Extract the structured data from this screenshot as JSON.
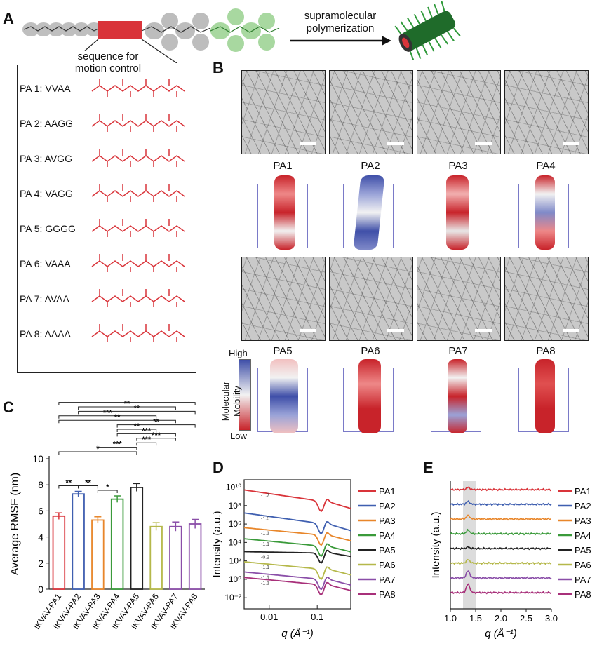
{
  "panel_labels": {
    "a": "A",
    "b": "B",
    "c": "C",
    "d": "D",
    "e": "E"
  },
  "panel_a": {
    "arrow_text_line1": "supramolecular",
    "arrow_text_line2": "polymerization",
    "box_title_line1": "sequence for",
    "box_title_line2": "motion control",
    "sequences": [
      {
        "label": "PA 1: VVAA"
      },
      {
        "label": "PA 2: AAGG"
      },
      {
        "label": "PA 3: AVGG"
      },
      {
        "label": "PA 4: VAGG"
      },
      {
        "label": "PA 5: GGGG"
      },
      {
        "label": "PA 6: VAAA"
      },
      {
        "label": "PA 7: AVAA"
      },
      {
        "label": "PA 8: AAAA"
      }
    ],
    "colors": {
      "sequence": "#d9343a",
      "peptide": "#555555",
      "green": "#3a9a3a"
    }
  },
  "panel_b": {
    "names_top": [
      "PA1",
      "PA2",
      "PA3",
      "PA4"
    ],
    "names_bottom": [
      "PA5",
      "PA6",
      "PA7",
      "PA8"
    ],
    "colorbar_high": "High",
    "colorbar_low": "Low",
    "colorbar_title_line1": "Molecular",
    "colorbar_title_line2": "Mobility",
    "colors": {
      "high": "#3f4fa8",
      "mid": "#f2f2f2",
      "low": "#c8232a"
    }
  },
  "chart_data": [
    {
      "panel": "C",
      "type": "bar",
      "ylabel": "Average RMSF (nm)",
      "ylim": [
        0,
        10
      ],
      "yticks": [
        0,
        2,
        4,
        6,
        8,
        10
      ],
      "categories": [
        "IKVAV-PA1",
        "IKVAV-PA2",
        "IKVAV-PA3",
        "IKVAV-PA4",
        "IKVAV-PA5",
        "IKVAV-PA6",
        "IKVAV-PA7",
        "IKVAV-PA8"
      ],
      "values": [
        5.6,
        7.3,
        5.3,
        6.9,
        7.8,
        4.8,
        4.8,
        5.0
      ],
      "errors": [
        0.25,
        0.2,
        0.25,
        0.25,
        0.3,
        0.3,
        0.35,
        0.35
      ],
      "bar_colors": [
        "#d9343a",
        "#3f5fb0",
        "#e8862a",
        "#3a9a3a",
        "#222222",
        "#b5b84a",
        "#8a4ea8",
        "#8a4ea8"
      ],
      "significance": [
        {
          "from": 0,
          "to": 1,
          "label": "**"
        },
        {
          "from": 1,
          "to": 2,
          "label": "**"
        },
        {
          "from": 2,
          "to": 3,
          "label": "*"
        },
        {
          "from": 0,
          "to": 4,
          "label": "*"
        },
        {
          "from": 2,
          "to": 4,
          "label": "***"
        },
        {
          "from": 4,
          "to": 5,
          "label": "***"
        },
        {
          "from": 4,
          "to": 6,
          "label": "***"
        },
        {
          "from": 3,
          "to": 6,
          "label": "***"
        },
        {
          "from": 3,
          "to": 5,
          "label": "**"
        },
        {
          "from": 3,
          "to": 7,
          "label": "**"
        },
        {
          "from": 0,
          "to": 6,
          "label": "**"
        },
        {
          "from": 0,
          "to": 5,
          "label": "***"
        },
        {
          "from": 1,
          "to": 7,
          "label": "**"
        },
        {
          "from": 1,
          "to": 6,
          "label": "**"
        },
        {
          "from": 0,
          "to": 7,
          "label": "***"
        }
      ]
    },
    {
      "panel": "D",
      "type": "line",
      "xlabel": "q (Å⁻¹)",
      "ylabel": "Intensity (a.u.)",
      "xscale": "log",
      "yscale": "log",
      "xlim": [
        0.003,
        0.5
      ],
      "ylim_log10": [
        -3.2,
        10.8
      ],
      "xtick_labels": [
        "0.01",
        "0.1"
      ],
      "ytick_labels": [
        "10¹⁰",
        "10⁸",
        "10⁶",
        "10⁴",
        "10²",
        "10⁰",
        "10⁻²"
      ],
      "ytick_values_log10": [
        10,
        8,
        6,
        4,
        2,
        0,
        -2
      ],
      "series": [
        {
          "name": "PA1",
          "color": "#d9343a",
          "offset_log10": 9.7,
          "slope": -1.7,
          "slope_label": "-1.7"
        },
        {
          "name": "PA2",
          "color": "#3f5fb0",
          "offset_log10": 7.2,
          "slope": -1.6,
          "slope_label": "-1.6"
        },
        {
          "name": "PA3",
          "color": "#e8862a",
          "offset_log10": 5.6,
          "slope": -1.1,
          "slope_label": "-1.1"
        },
        {
          "name": "PA4",
          "color": "#3a9a3a",
          "offset_log10": 4.4,
          "slope": -1.1,
          "slope_label": "-1.1"
        },
        {
          "name": "PA5",
          "color": "#222222",
          "offset_log10": 3.0,
          "slope": -0.2,
          "slope_label": "-0.2"
        },
        {
          "name": "PA6",
          "color": "#b5b84a",
          "offset_log10": 1.9,
          "slope": -1.1,
          "slope_label": "-1.1"
        },
        {
          "name": "PA7",
          "color": "#8a4ea8",
          "offset_log10": 0.8,
          "slope": -1.1,
          "slope_label": "-1.1"
        },
        {
          "name": "PA8",
          "color": "#a8307a",
          "offset_log10": 0.2,
          "slope": -1.1,
          "slope_label": "-1.1"
        }
      ]
    },
    {
      "panel": "E",
      "type": "line",
      "xlabel": "q (Å⁻¹)",
      "ylabel": "Intensity (a.u.)",
      "xlim": [
        1.0,
        3.0
      ],
      "xticks": [
        1.0,
        1.5,
        2.0,
        2.5,
        3.0
      ],
      "xtick_labels": [
        "1.0",
        "1.5",
        "2.0",
        "2.5",
        "3.0"
      ],
      "highlight_range": [
        1.25,
        1.5
      ],
      "peak_q": 1.35,
      "series": [
        {
          "name": "PA1",
          "color": "#d9343a",
          "peak": 0.3
        },
        {
          "name": "PA2",
          "color": "#3f5fb0",
          "peak": 0.4
        },
        {
          "name": "PA3",
          "color": "#e8862a",
          "peak": 0.5
        },
        {
          "name": "PA4",
          "color": "#3a9a3a",
          "peak": 0.5
        },
        {
          "name": "PA5",
          "color": "#222222",
          "peak": 0.2
        },
        {
          "name": "PA6",
          "color": "#b5b84a",
          "peak": 0.5
        },
        {
          "name": "PA7",
          "color": "#8a4ea8",
          "peak": 1.0
        },
        {
          "name": "PA8",
          "color": "#a8307a",
          "peak": 1.2
        }
      ]
    }
  ]
}
